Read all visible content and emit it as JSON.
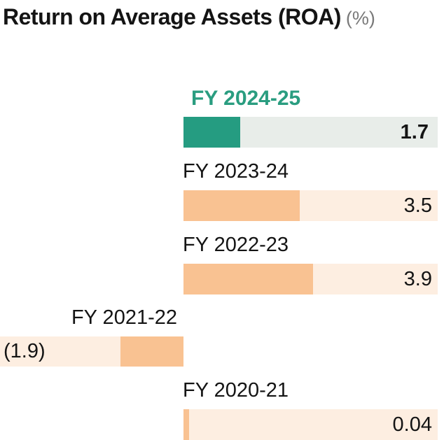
{
  "chart_data": {
    "type": "bar",
    "orientation": "horizontal",
    "title": "Return on Average Assets (ROA)",
    "unit_label": "(%)",
    "categories": [
      "FY 2024-25",
      "FY 2023-24",
      "FY 2022-23",
      "FY 2021-22",
      "FY 2020-21"
    ],
    "values": [
      1.7,
      3.5,
      3.9,
      -1.9,
      0.04
    ],
    "value_labels": [
      "1.7",
      "3.5",
      "3.9",
      "(1.9)",
      "0.04"
    ],
    "highlight_index": 0,
    "negative_format": "parentheses",
    "legend": "none",
    "grid": false,
    "colors": {
      "highlight_fill": "#259c81",
      "highlight_track": "#e8ede9",
      "highlight_label": "#2a9d80",
      "bar_fill": "#f9c292",
      "bar_track": "#fdeee1",
      "text": "#141414",
      "unit_text": "#7a7a7a"
    }
  }
}
